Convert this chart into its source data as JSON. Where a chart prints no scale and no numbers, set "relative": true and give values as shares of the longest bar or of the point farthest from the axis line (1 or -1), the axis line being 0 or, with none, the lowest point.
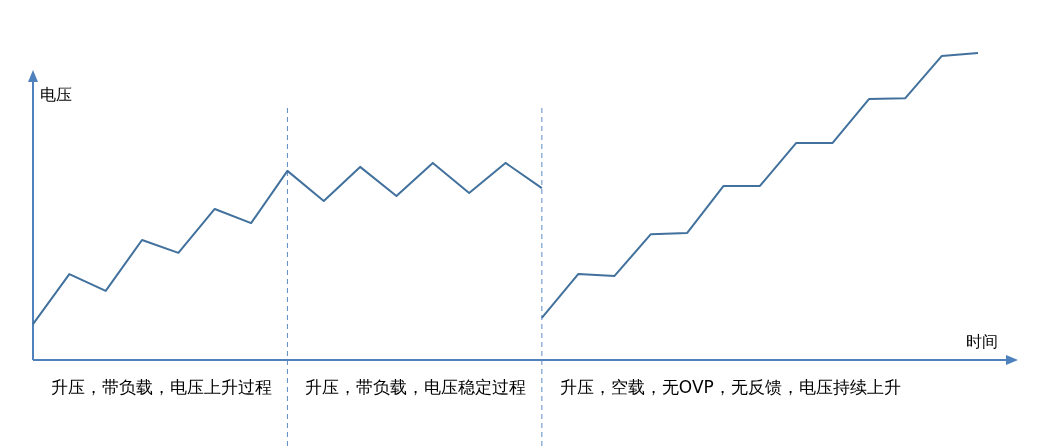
{
  "chart_data": {
    "type": "line",
    "relative": true,
    "xlabel": "时间",
    "ylabel": "电压",
    "categories": [
      null,
      null,
      null,
      null,
      null,
      null,
      null,
      null,
      null,
      null,
      null,
      null,
      null,
      null,
      null,
      null,
      null,
      null,
      null,
      null,
      null,
      null,
      null,
      null,
      null,
      null,
      null
    ],
    "series": [
      {
        "color": "#41719c",
        "values": [
          0.117,
          0.28,
          0.225,
          0.391,
          0.349,
          0.492,
          0.446,
          0.616,
          0.518,
          0.629,
          0.534,
          0.642,
          0.544,
          0.642,
          0.56,
          null,
          null,
          null,
          null,
          null,
          null,
          null,
          null,
          null,
          null,
          null,
          null
        ]
      },
      {
        "color": "#41719c",
        "values": [
          null,
          null,
          null,
          null,
          null,
          null,
          null,
          null,
          null,
          null,
          null,
          null,
          null,
          null,
          0.137,
          0.28,
          0.274,
          0.41,
          0.414,
          0.567,
          0.567,
          0.707,
          0.707,
          0.85,
          0.853,
          0.99,
          1
        ]
      }
    ],
    "annotations": [
      "升压，带负载，电压上升过程",
      "升压，带负载，电压稳定过程",
      "升压，空载，无OVP，无反馈，电压持续上升"
    ]
  }
}
